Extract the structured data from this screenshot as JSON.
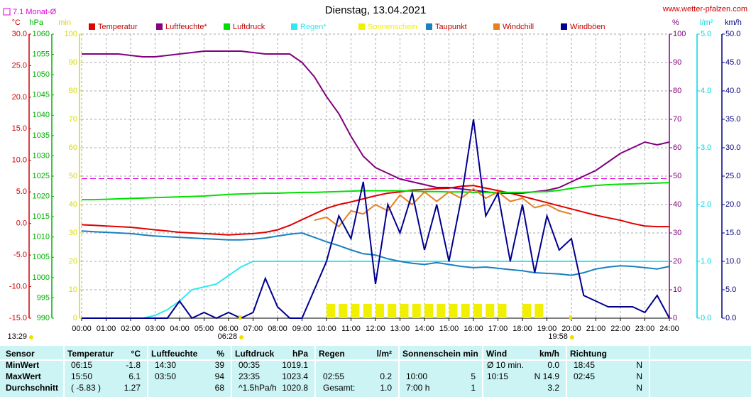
{
  "chart_data": {
    "type": "line",
    "title": "Dienstag, 13.04.2021",
    "source": "www.wetter-pfalzen.com",
    "month_avg": {
      "label": "7.1 Monat-Ø",
      "value": 7.1,
      "color": "#e000e0"
    },
    "timestamp": "13:29",
    "sun_events": [
      {
        "label": "06:28",
        "x": 6.467
      },
      {
        "label": "19:58",
        "x": 19.967
      }
    ],
    "xlim": [
      0,
      24
    ],
    "xticks": [
      {
        "value": 0,
        "label": "00:00"
      },
      {
        "value": 1,
        "label": "01:00"
      },
      {
        "value": 2,
        "label": "02:00"
      },
      {
        "value": 3,
        "label": "03:00"
      },
      {
        "value": 4,
        "label": "04:00"
      },
      {
        "value": 5,
        "label": "05:00"
      },
      {
        "value": 6,
        "label": "06:00"
      },
      {
        "value": 7,
        "label": "07:00"
      },
      {
        "value": 8,
        "label": "08:00"
      },
      {
        "value": 9,
        "label": "09:00"
      },
      {
        "value": 10,
        "label": "10:00"
      },
      {
        "value": 11,
        "label": "11:00"
      },
      {
        "value": 12,
        "label": "12:00"
      },
      {
        "value": 13,
        "label": "13:00"
      },
      {
        "value": 14,
        "label": "14:00"
      },
      {
        "value": 15,
        "label": "15:00"
      },
      {
        "value": 16,
        "label": "16:00"
      },
      {
        "value": 17,
        "label": "17:00"
      },
      {
        "value": 18,
        "label": "18:00"
      },
      {
        "value": 19,
        "label": "19:00"
      },
      {
        "value": 20,
        "label": "20:00"
      },
      {
        "value": 21,
        "label": "21:00"
      },
      {
        "value": 22,
        "label": "22:00"
      },
      {
        "value": 23,
        "label": "23:00"
      },
      {
        "value": 24,
        "label": "24:00"
      }
    ],
    "grid": true,
    "axes": [
      {
        "unit": "°C",
        "side": "left",
        "color": "#d00000",
        "lim": [
          -15,
          30
        ],
        "ticks": [
          {
            "value": -15,
            "label": "-15.0"
          },
          {
            "value": -10,
            "label": "-10.0"
          },
          {
            "value": -5,
            "label": "-5.0"
          },
          {
            "value": 0,
            "label": "0.0"
          },
          {
            "value": 5,
            "label": "5.0"
          },
          {
            "value": 10,
            "label": "10.0"
          },
          {
            "value": 15,
            "label": "15.0"
          },
          {
            "value": 20,
            "label": "20.0"
          },
          {
            "value": 25,
            "label": "25.0"
          },
          {
            "value": 30,
            "label": "30.0"
          }
        ]
      },
      {
        "unit": "hPa",
        "side": "left",
        "color": "#00b000",
        "lim": [
          990,
          1060
        ],
        "ticks": [
          990,
          995,
          1000,
          1005,
          1010,
          1015,
          1020,
          1025,
          1030,
          1035,
          1040,
          1045,
          1050,
          1055,
          1060
        ]
      },
      {
        "unit": "min",
        "side": "left",
        "color": "#d8d800",
        "lim": [
          0,
          100
        ],
        "ticks": [
          0,
          10,
          20,
          30,
          40,
          50,
          60,
          70,
          80,
          90,
          100
        ],
        "grid": true
      },
      {
        "unit": "%",
        "side": "right",
        "color": "#800080",
        "lim": [
          0,
          100
        ],
        "ticks": [
          0,
          10,
          20,
          30,
          40,
          50,
          60,
          70,
          80,
          90,
          100
        ]
      },
      {
        "unit": "l/m²",
        "side": "right",
        "color": "#00d8e0",
        "lim": [
          0,
          5
        ],
        "ticks": [
          {
            "value": 0,
            "label": "0.0"
          },
          {
            "value": 1,
            "label": "1.0"
          },
          {
            "value": 2,
            "label": "2.0"
          },
          {
            "value": 3,
            "label": "3.0"
          },
          {
            "value": 4,
            "label": "4.0"
          },
          {
            "value": 5,
            "label": "5.0"
          }
        ]
      },
      {
        "unit": "km/h",
        "side": "right",
        "color": "#000080",
        "lim": [
          0,
          50
        ],
        "ticks": [
          {
            "value": 0,
            "label": "0.0"
          },
          {
            "value": 5,
            "label": "5.0"
          },
          {
            "value": 10,
            "label": "10.0"
          },
          {
            "value": 15,
            "label": "15.0"
          },
          {
            "value": 20,
            "label": "20.0"
          },
          {
            "value": 25,
            "label": "25.0"
          },
          {
            "value": 30,
            "label": "30.0"
          },
          {
            "value": 35,
            "label": "35.0"
          },
          {
            "value": 40,
            "label": "40.0"
          },
          {
            "value": 45,
            "label": "45.0"
          },
          {
            "value": 50,
            "label": "50.0"
          }
        ]
      }
    ],
    "x": [
      0,
      0.5,
      1,
      1.5,
      2,
      2.5,
      3,
      3.5,
      4,
      4.5,
      5,
      5.5,
      6,
      6.5,
      7,
      7.5,
      8,
      8.5,
      9,
      9.5,
      10,
      10.5,
      11,
      11.5,
      12,
      12.5,
      13,
      13.5,
      14,
      14.5,
      15,
      15.5,
      16,
      16.5,
      17,
      17.5,
      18,
      18.5,
      19,
      19.5,
      20,
      20.5,
      21,
      21.5,
      22,
      22.5,
      23,
      23.5,
      24
    ],
    "series": [
      {
        "name": "Temperatur",
        "color": "#e00000",
        "axis": 0,
        "values": [
          -0.2,
          -0.3,
          -0.4,
          -0.5,
          -0.6,
          -0.8,
          -1.0,
          -1.2,
          -1.4,
          -1.5,
          -1.6,
          -1.7,
          -1.8,
          -1.7,
          -1.6,
          -1.4,
          -1.0,
          -0.3,
          0.6,
          1.5,
          2.4,
          3.0,
          3.4,
          3.9,
          4.4,
          4.8,
          5.0,
          5.3,
          5.4,
          5.5,
          5.6,
          5.9,
          6.0,
          5.6,
          5.2,
          4.8,
          4.3,
          3.8,
          3.3,
          2.8,
          2.3,
          1.8,
          1.3,
          0.9,
          0.5,
          0.0,
          -0.4,
          -0.5,
          -0.5
        ]
      },
      {
        "name": "Luftfeuchte*",
        "color": "#800080",
        "axis": 3,
        "values": [
          93,
          93,
          93,
          93,
          92.5,
          92,
          92,
          92.5,
          93,
          93.5,
          94,
          94,
          94,
          94,
          93.5,
          93,
          93,
          93,
          90,
          85,
          78,
          72,
          64,
          57,
          53,
          51,
          49,
          48,
          47,
          46,
          46,
          45.5,
          45,
          44.5,
          44,
          44,
          44,
          44.5,
          45,
          46,
          48,
          50,
          52,
          55,
          58,
          60,
          62,
          61,
          62
        ]
      },
      {
        "name": "Luftdruck",
        "color": "#00e000",
        "axis": 1,
        "values": [
          1019.2,
          1019.2,
          1019.3,
          1019.4,
          1019.5,
          1019.6,
          1019.7,
          1019.8,
          1019.9,
          1020.0,
          1020.1,
          1020.3,
          1020.5,
          1020.6,
          1020.7,
          1020.8,
          1020.8,
          1020.9,
          1021.0,
          1021.0,
          1021.1,
          1021.2,
          1021.3,
          1021.4,
          1021.4,
          1021.4,
          1021.4,
          1021.3,
          1021.2,
          1021.2,
          1021.1,
          1021.1,
          1021.0,
          1021.0,
          1021.0,
          1021.0,
          1021.0,
          1021.1,
          1021.2,
          1021.5,
          1022.0,
          1022.4,
          1022.7,
          1022.9,
          1023.0,
          1023.1,
          1023.2,
          1023.3,
          1023.4
        ]
      },
      {
        "name": "Regen*",
        "color": "#30e8f0",
        "axis": 4,
        "values": [
          0,
          0,
          0,
          0,
          0,
          0,
          0.05,
          0.15,
          0.3,
          0.5,
          0.55,
          0.6,
          0.75,
          0.9,
          1.0,
          1.0,
          1.0,
          1.0,
          1.0,
          1.0,
          1.0,
          1.0,
          1.0,
          1.0,
          1.0,
          1.0,
          1.0,
          1.0,
          1.0,
          1.0,
          1.0,
          1.0,
          1.0,
          1.0,
          1.0,
          1.0,
          1.0,
          1.0,
          1.0,
          1.0,
          1.0,
          1.0,
          1.0,
          1.0,
          1.0,
          1.0,
          1.0,
          1.0,
          1.0
        ]
      },
      {
        "name": "Sonnenschein",
        "color": "#f0f000",
        "axis": 2,
        "type": "bar",
        "values": [
          0,
          0,
          0,
          0,
          0,
          0,
          0,
          0,
          0,
          0,
          0,
          0,
          0,
          0,
          0,
          0,
          0,
          0,
          0,
          0,
          5,
          5,
          5,
          5,
          5,
          5,
          5,
          5,
          5,
          5,
          5,
          5,
          5,
          5,
          5,
          0,
          5,
          5,
          0,
          0,
          0,
          0,
          0,
          0,
          0,
          0,
          0,
          0,
          0
        ]
      },
      {
        "name": "Taupunkt",
        "color": "#1a80c0",
        "axis": 0,
        "values": [
          -1.2,
          -1.3,
          -1.4,
          -1.5,
          -1.6,
          -1.8,
          -2.0,
          -2.1,
          -2.2,
          -2.3,
          -2.4,
          -2.5,
          -2.6,
          -2.6,
          -2.5,
          -2.3,
          -2.0,
          -1.7,
          -1.5,
          -2.2,
          -2.9,
          -3.5,
          -4.2,
          -4.8,
          -5.0,
          -5.6,
          -6.0,
          -6.3,
          -6.5,
          -6.2,
          -6.5,
          -6.8,
          -7.0,
          -6.9,
          -7.1,
          -7.3,
          -7.5,
          -7.8,
          -7.9,
          -8.0,
          -8.2,
          -7.8,
          -7.2,
          -6.9,
          -6.7,
          -6.8,
          -7.0,
          -7.2,
          -6.8
        ]
      },
      {
        "name": "Windchill",
        "color": "#e88020",
        "axis": 0,
        "values": [
          null,
          null,
          null,
          null,
          null,
          null,
          null,
          null,
          null,
          null,
          null,
          null,
          null,
          null,
          null,
          null,
          null,
          null,
          null,
          0.5,
          1.0,
          -0.5,
          2.0,
          1.5,
          3.0,
          2.0,
          4.5,
          3.0,
          5.0,
          3.5,
          5.0,
          4.0,
          5.5,
          4.0,
          5.0,
          3.5,
          4.0,
          2.5,
          3.0,
          2.0,
          1.5,
          null,
          null,
          null,
          null,
          null,
          null,
          null,
          null
        ]
      },
      {
        "name": "Windböen",
        "color": "#000090",
        "axis": 5,
        "values": [
          0,
          0,
          0,
          0,
          0,
          0,
          0,
          0,
          3,
          0,
          1,
          0,
          1,
          0,
          1,
          7,
          2,
          0,
          0,
          5,
          10,
          18,
          14,
          24,
          6,
          20,
          15,
          22,
          12,
          20,
          10,
          21,
          35,
          18,
          22,
          10,
          20,
          8,
          18,
          12,
          14,
          4,
          3,
          2,
          2,
          2,
          1,
          4,
          0
        ]
      }
    ]
  },
  "table": {
    "header": [
      "Sensor",
      "Temperatur",
      "°C",
      "Luftfeuchte",
      "%",
      "Luftdruck",
      "hPa",
      "Regen",
      "l/m²",
      "Sonnenschein min",
      "Wind",
      "km/h",
      "Richtung"
    ],
    "rows": [
      {
        "label": "MinWert",
        "temp_time": "06:15",
        "temp": "-1.8",
        "hum_time": "14:30",
        "hum": "39",
        "press_time": "00:35",
        "press": "1019.1",
        "wind_time": "Ø 10 min.",
        "wind": "0.0",
        "dir_time": "18:45",
        "dir": "N"
      },
      {
        "label": "MaxWert",
        "temp_time": "15:50",
        "temp": "6.1",
        "hum_time": "03:50",
        "hum": "94",
        "press_time": "23:35",
        "press": "1023.4",
        "rain_time": "02:55",
        "rain": "0.2",
        "sun_time": "10:00",
        "sun": "5",
        "wind_time": "10:15",
        "wind": "N 14.9",
        "dir_time": "02:45",
        "dir": "N"
      },
      {
        "label": "Durchschnitt",
        "temp_time": "( -5.83 )",
        "temp": "1.27",
        "hum": "68",
        "press_time": "^1.5hPa/h",
        "press": "1020.8",
        "rain_time": "Gesamt:",
        "rain": "1.0",
        "sun_time": "7:00 h",
        "sun": "1",
        "wind": "3.2",
        "dir": "N"
      }
    ]
  }
}
